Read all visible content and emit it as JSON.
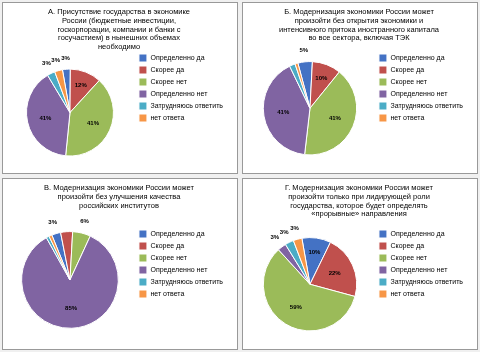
{
  "chart_data": [
    {
      "type": "pie",
      "title": "А. Присутствие государства в экономике\nРоссии (бюджетные инвестиции,\nгоскорпорации, компании и банки с\nгосучастием) в нынешних объемах\nнеобходимо",
      "categories": [
        "Определенно да",
        "Скорее да",
        "Скорее нет",
        "Определенно нет",
        "Затрудняюсь ответить",
        "нет ответа"
      ],
      "values": [
        3,
        12,
        41,
        41,
        3,
        3
      ],
      "value_labels": [
        "3%",
        "12%",
        "41%",
        "41%",
        "3%",
        "3%"
      ],
      "colors": [
        "#4472C4",
        "#C0504D",
        "#9BBB59",
        "#8064A2",
        "#4BACC6",
        "#F79646"
      ],
      "data_labels": true,
      "legend": "right"
    },
    {
      "type": "pie",
      "title": "Б. Модернизация экономики России может\nпроизойти без открытия экономики и\nинтенсивного притока иностранного капитала\nво все сектора, включая ТЭК",
      "categories": [
        "Определенно да",
        "Скорее да",
        "Скорее нет",
        "Определенно нет",
        "Затрудняюсь ответить",
        "нет ответа"
      ],
      "values": [
        5,
        10,
        41,
        41,
        2,
        1
      ],
      "value_labels": [
        "5%",
        "10%",
        "41%",
        "41%",
        null,
        null
      ],
      "colors": [
        "#4472C4",
        "#C0504D",
        "#9BBB59",
        "#8064A2",
        "#4BACC6",
        "#F79646"
      ],
      "data_labels": true,
      "legend": "right"
    },
    {
      "type": "pie",
      "title": "В. Модернизация экономики России может\nпроизойти без улучшения качества\nроссийских институтов",
      "categories": [
        "Определенно да",
        "Скорее да",
        "Скорее нет",
        "Определенно нет",
        "Затрудняюсь ответить",
        "нет ответа"
      ],
      "values": [
        3,
        4,
        6,
        85,
        1,
        1
      ],
      "value_labels": [
        "3%",
        null,
        "6%",
        "85%",
        null,
        null
      ],
      "colors": [
        "#4472C4",
        "#C0504D",
        "#9BBB59",
        "#8064A2",
        "#4BACC6",
        "#F79646"
      ],
      "data_labels": true,
      "legend": "right"
    },
    {
      "type": "pie",
      "title": "Г. Модернизация экономики России может\nпроизойти только при лидирующей роли\nгосударства, которое будет определять\n«прорывные» направления",
      "categories": [
        "Определенно да",
        "Скорее да",
        "Скорее нет",
        "Определенно нет",
        "Затрудняюсь ответить",
        "нет ответа"
      ],
      "values": [
        10,
        22,
        59,
        3,
        3,
        3
      ],
      "value_labels": [
        "10%",
        "22%",
        "59%",
        "3%",
        "3%",
        "3%"
      ],
      "colors": [
        "#4472C4",
        "#C0504D",
        "#9BBB59",
        "#8064A2",
        "#4BACC6",
        "#F79646"
      ],
      "data_labels": true,
      "legend": "right"
    }
  ]
}
